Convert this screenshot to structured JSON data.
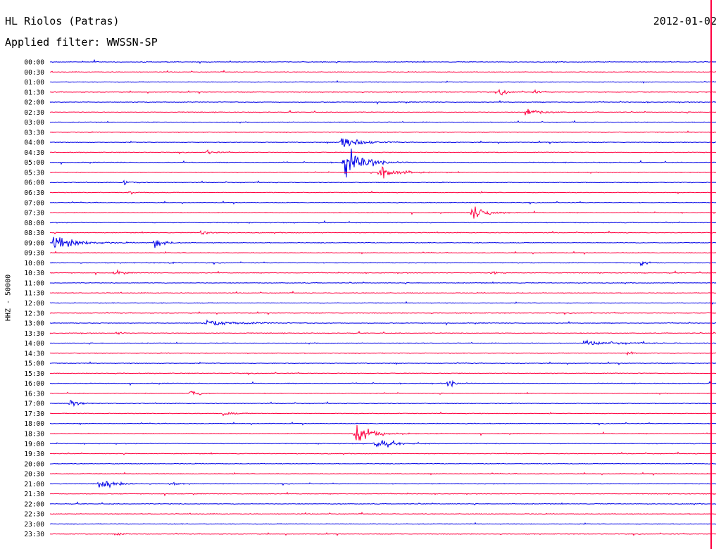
{
  "header": {
    "station": "HL Riolos (Patras)",
    "filter": "Applied filter: WWSSN-SP",
    "date": "2012-01-02"
  },
  "chart_data": {
    "type": "line",
    "title": "HL Riolos (Patras)",
    "subtitle": "Applied filter: WWSSN-SP",
    "date": "2012-01-02",
    "ylabel": "HHZ - 50000",
    "colors": {
      "even_rows": "#0000e6",
      "odd_rows": "#ff0040"
    },
    "rows": [
      "00:00",
      "00:30",
      "01:00",
      "01:30",
      "02:00",
      "02:30",
      "03:00",
      "03:30",
      "04:00",
      "04:30",
      "05:00",
      "05:30",
      "06:00",
      "06:30",
      "07:00",
      "07:30",
      "08:00",
      "08:30",
      "09:00",
      "09:30",
      "10:00",
      "10:30",
      "11:00",
      "11:30",
      "12:00",
      "12:30",
      "13:00",
      "13:30",
      "14:00",
      "14:30",
      "15:00",
      "15:30",
      "16:00",
      "16:30",
      "17:00",
      "17:30",
      "18:00",
      "18:30",
      "19:00",
      "19:30",
      "20:00",
      "20:30",
      "21:00",
      "21:30",
      "22:00",
      "22:30",
      "23:00",
      "23:30"
    ],
    "events": [
      {
        "row": 3,
        "minute": 20.2,
        "amp": 0.6,
        "dur": 0.8
      },
      {
        "row": 3,
        "minute": 21.8,
        "amp": 0.35,
        "dur": 0.4
      },
      {
        "row": 5,
        "minute": 21.4,
        "amp": 0.9,
        "dur": 1.2
      },
      {
        "row": 9,
        "minute": 7.1,
        "amp": 0.55,
        "dur": 0.5
      },
      {
        "row": 8,
        "minute": 13.1,
        "amp": 2.3,
        "dur": 1.3
      },
      {
        "row": 10,
        "minute": 13.2,
        "amp": 3.6,
        "dur": 1.6
      },
      {
        "row": 11,
        "minute": 14.8,
        "amp": 2.4,
        "dur": 1.3
      },
      {
        "row": 12,
        "minute": 3.3,
        "amp": 0.7,
        "dur": 0.6
      },
      {
        "row": 13,
        "minute": 3.6,
        "amp": 0.4,
        "dur": 0.5
      },
      {
        "row": 15,
        "minute": 19.0,
        "amp": 1.8,
        "dur": 1.2
      },
      {
        "row": 18,
        "minute": 0.1,
        "amp": 1.6,
        "dur": 2.0
      },
      {
        "row": 18,
        "minute": 4.7,
        "amp": 1.0,
        "dur": 0.8
      },
      {
        "row": 17,
        "minute": 6.8,
        "amp": 0.8,
        "dur": 0.6
      },
      {
        "row": 21,
        "minute": 2.9,
        "amp": 0.6,
        "dur": 0.6
      },
      {
        "row": 20,
        "minute": 5.4,
        "amp": 0.5,
        "dur": 0.5
      },
      {
        "row": 21,
        "minute": 19.9,
        "amp": 0.6,
        "dur": 0.5
      },
      {
        "row": 20,
        "minute": 26.6,
        "amp": 0.6,
        "dur": 0.6
      },
      {
        "row": 26,
        "minute": 7.0,
        "amp": 0.7,
        "dur": 2.5
      },
      {
        "row": 27,
        "minute": 3.0,
        "amp": 0.6,
        "dur": 0.4
      },
      {
        "row": 28,
        "minute": 24.0,
        "amp": 0.4,
        "dur": 3.5
      },
      {
        "row": 29,
        "minute": 26.0,
        "amp": 0.4,
        "dur": 0.6
      },
      {
        "row": 32,
        "minute": 17.9,
        "amp": 1.0,
        "dur": 0.6
      },
      {
        "row": 33,
        "minute": 6.3,
        "amp": 1.0,
        "dur": 0.6
      },
      {
        "row": 34,
        "minute": 0.9,
        "amp": 1.1,
        "dur": 0.6
      },
      {
        "row": 35,
        "minute": 7.8,
        "amp": 0.5,
        "dur": 0.8
      },
      {
        "row": 37,
        "minute": 13.7,
        "amp": 2.2,
        "dur": 1.6
      },
      {
        "row": 38,
        "minute": 14.6,
        "amp": 1.5,
        "dur": 1.2
      },
      {
        "row": 42,
        "minute": 2.2,
        "amp": 1.3,
        "dur": 1.2
      },
      {
        "row": 42,
        "minute": 5.3,
        "amp": 0.5,
        "dur": 0.6
      },
      {
        "row": 47,
        "minute": 3.0,
        "amp": 0.3,
        "dur": 0.8
      }
    ]
  }
}
